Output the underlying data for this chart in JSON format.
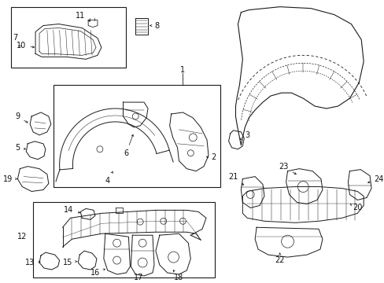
{
  "bg": "#ffffff",
  "lc": "#1a1a1a",
  "fw": 4.89,
  "fh": 3.6,
  "dpi": 100
}
